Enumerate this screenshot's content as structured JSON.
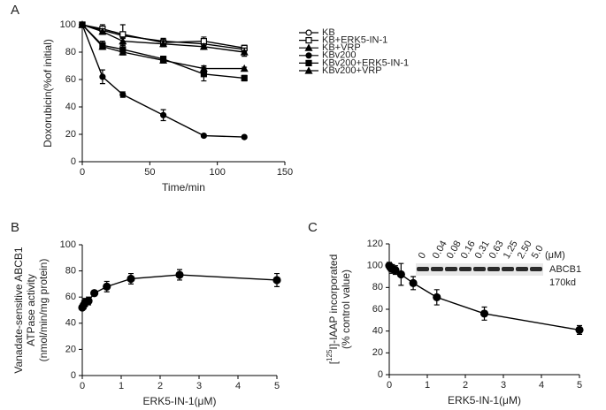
{
  "chart_data": [
    {
      "type": "line",
      "panel": "A",
      "ylabel": [
        "Doxorubicin(%of initial)"
      ],
      "xlabel": "Time/min",
      "x": [
        0,
        15,
        30,
        60,
        90,
        120
      ],
      "xlim": [
        0,
        150
      ],
      "xticks": [
        0,
        50,
        100,
        150
      ],
      "ylim": [
        0,
        100
      ],
      "yticks": [
        0,
        20,
        40,
        60,
        80,
        100
      ],
      "legend": "right",
      "series": [
        {
          "name": "KB",
          "color": "#000000",
          "marker": "circle-open",
          "values": [
            100,
            96,
            92,
            88,
            86,
            82
          ],
          "errors": [
            1,
            1,
            2,
            2,
            3,
            2
          ]
        },
        {
          "name": "KB+ERK5-IN-1",
          "color": "#000000",
          "marker": "square-open",
          "values": [
            100,
            97,
            93,
            87,
            88,
            83
          ],
          "errors": [
            1,
            3,
            7,
            3,
            3,
            2
          ]
        },
        {
          "name": "KB+VRP",
          "color": "#000000",
          "marker": "triangle",
          "values": [
            100,
            95,
            88,
            86,
            84,
            80
          ],
          "errors": [
            1,
            2,
            3,
            2,
            2,
            3
          ]
        },
        {
          "name": "KBv200",
          "color": "#000000",
          "marker": "circle",
          "values": [
            100,
            62,
            49,
            34,
            19,
            18
          ],
          "errors": [
            1,
            5,
            2,
            4,
            1,
            1
          ]
        },
        {
          "name": "KBv200+ERK5-IN-1",
          "color": "#000000",
          "marker": "square",
          "values": [
            100,
            85,
            82,
            75,
            64,
            61
          ],
          "errors": [
            1,
            3,
            3,
            2,
            5,
            2
          ]
        },
        {
          "name": "KBv200+VRP",
          "color": "#000000",
          "marker": "triangle",
          "values": [
            100,
            84,
            80,
            74,
            68,
            68
          ],
          "errors": [
            1,
            2,
            2,
            2,
            2,
            1
          ]
        }
      ]
    },
    {
      "type": "line",
      "panel": "B",
      "ylabel": [
        "Vanadate-sensitive ABCB1",
        "ATPase activity",
        "(nmol/min/mg protein)"
      ],
      "xlabel": "ERK5-IN-1(μM)",
      "x": [
        0,
        0.04,
        0.08,
        0.16,
        0.31,
        0.63,
        1.25,
        2.5,
        5
      ],
      "xlim": [
        0,
        5
      ],
      "xticks": [
        0,
        1,
        2,
        3,
        4,
        5
      ],
      "ylim": [
        0,
        100
      ],
      "yticks": [
        0,
        20,
        40,
        60,
        80,
        100
      ],
      "color": "#000000",
      "marker": "circle",
      "values": [
        52,
        54,
        56,
        57,
        63,
        68,
        74,
        77,
        73
      ],
      "errors": [
        2,
        3,
        3,
        3,
        2,
        4,
        4,
        4,
        5
      ]
    },
    {
      "type": "line",
      "panel": "C",
      "ylabel": [
        {
          "prefix": "[",
          "sup": "125",
          "suffix": "I]-IAAP incorporated"
        },
        "(% control value)"
      ],
      "xlabel": "ERK5-IN-1(μM)",
      "x": [
        0,
        0.04,
        0.08,
        0.16,
        0.31,
        0.63,
        1.25,
        2.5,
        5
      ],
      "xlim": [
        0,
        5
      ],
      "xticks": [
        0,
        1,
        2,
        3,
        4,
        5
      ],
      "ylim": [
        0,
        120
      ],
      "yticks": [
        0,
        20,
        40,
        60,
        80,
        100,
        120
      ],
      "color": "#000000",
      "marker": "circle",
      "values": [
        100,
        98,
        97,
        96,
        92,
        84,
        71,
        56,
        41
      ],
      "errors": [
        3,
        3,
        4,
        4,
        10,
        6,
        7,
        6,
        4
      ],
      "inset": {
        "labels": [
          "0",
          "0.04",
          "0.08",
          "0.16",
          "0.31",
          "0.63",
          "1.25",
          "2.50",
          "5.0"
        ],
        "unit": "(μM)",
        "band": "ABCB1",
        "size": "170kd"
      }
    }
  ]
}
